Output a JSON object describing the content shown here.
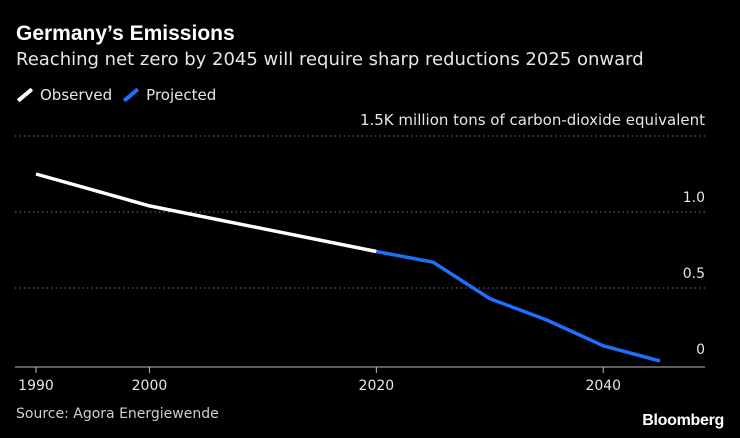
{
  "chart_data": {
    "type": "line",
    "title": "Germany’s Emissions",
    "subtitle": "Reaching net zero by 2045 will require sharp reductions 2025 onward",
    "unit_label": "1.5K million tons of carbon-dioxide equivalent",
    "source": "Source: Agora Energiewende",
    "brand": "Bloomberg",
    "xlim": [
      1990,
      2045
    ],
    "ylim": [
      0,
      1.5
    ],
    "x_ticks": [
      1990,
      2000,
      2020,
      2040
    ],
    "x_tick_labels": [
      "1990",
      "2000",
      "2020",
      "2040"
    ],
    "y_ticks": [
      0,
      0.5,
      1.0
    ],
    "y_tick_labels": [
      "0",
      "0.5",
      "1.0"
    ],
    "grid": true,
    "legend_position": "top-left",
    "series": [
      {
        "name": "Observed",
        "color": "#ffffff",
        "x": [
          1990,
          2000,
          2020
        ],
        "y": [
          1.25,
          1.04,
          0.74
        ]
      },
      {
        "name": "Projected",
        "color": "#1f6fff",
        "x": [
          2020,
          2025,
          2030,
          2035,
          2040,
          2045
        ],
        "y": [
          0.74,
          0.67,
          0.43,
          0.29,
          0.12,
          0.02
        ]
      }
    ]
  }
}
